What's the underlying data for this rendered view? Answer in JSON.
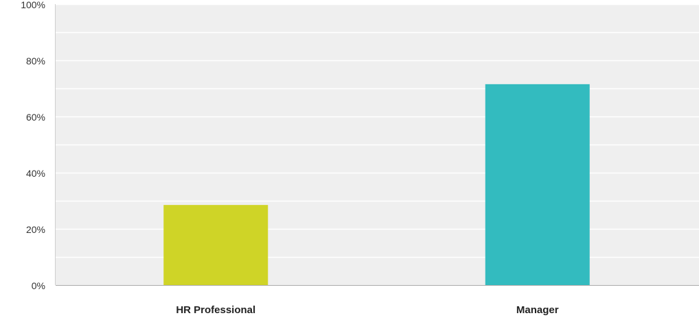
{
  "chart_data": {
    "type": "bar",
    "categories": [
      "HR Professional",
      "Manager"
    ],
    "values": [
      28.5,
      71.5
    ],
    "colors": [
      "#cfd427",
      "#33bbbf"
    ],
    "y_tick_labels": [
      "0%",
      "20%",
      "40%",
      "60%",
      "80%",
      "100%"
    ],
    "ylim": [
      0,
      100
    ],
    "grid": true,
    "plot_background": "#efefef",
    "gridline_color": "#ffffff",
    "title": "",
    "xlabel": "",
    "ylabel": ""
  }
}
